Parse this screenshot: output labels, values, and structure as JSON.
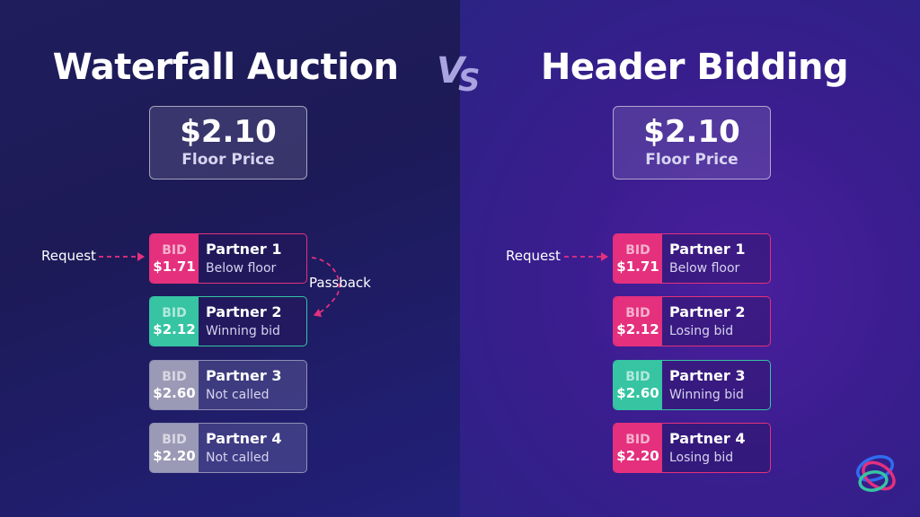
{
  "colors": {
    "bid_pink": "#e4307d",
    "bid_green": "#36c4a3",
    "bid_grey": "#9a9ab6",
    "vs": "#a9a3e0"
  },
  "vs": {
    "v": "V",
    "s": "S"
  },
  "waterfall": {
    "title": "Waterfall Auction",
    "floor": {
      "price": "$2.10",
      "label": "Floor Price"
    },
    "request_label": "Request",
    "passback_label": "Passback",
    "partners": [
      {
        "tag": "BID",
        "amount": "$1.71",
        "name": "Partner 1",
        "status": "Below floor",
        "color": "pink"
      },
      {
        "tag": "BID",
        "amount": "$2.12",
        "name": "Partner 2",
        "status": "Winning bid",
        "color": "green"
      },
      {
        "tag": "BID",
        "amount": "$2.60",
        "name": "Partner 3",
        "status": "Not called",
        "color": "grey"
      },
      {
        "tag": "BID",
        "amount": "$2.20",
        "name": "Partner 4",
        "status": "Not called",
        "color": "grey"
      }
    ]
  },
  "header_bidding": {
    "title": "Header Bidding",
    "floor": {
      "price": "$2.10",
      "label": "Floor Price"
    },
    "request_label": "Request",
    "partners": [
      {
        "tag": "BID",
        "amount": "$1.71",
        "name": "Partner 1",
        "status": "Below floor",
        "color": "pink"
      },
      {
        "tag": "BID",
        "amount": "$2.12",
        "name": "Partner 2",
        "status": "Losing bid",
        "color": "pink"
      },
      {
        "tag": "BID",
        "amount": "$2.60",
        "name": "Partner 3",
        "status": "Winning bid",
        "color": "green"
      },
      {
        "tag": "BID",
        "amount": "$2.20",
        "name": "Partner 4",
        "status": "Losing bid",
        "color": "pink"
      }
    ]
  },
  "logo": {
    "icon": "swirl-logo-icon"
  }
}
